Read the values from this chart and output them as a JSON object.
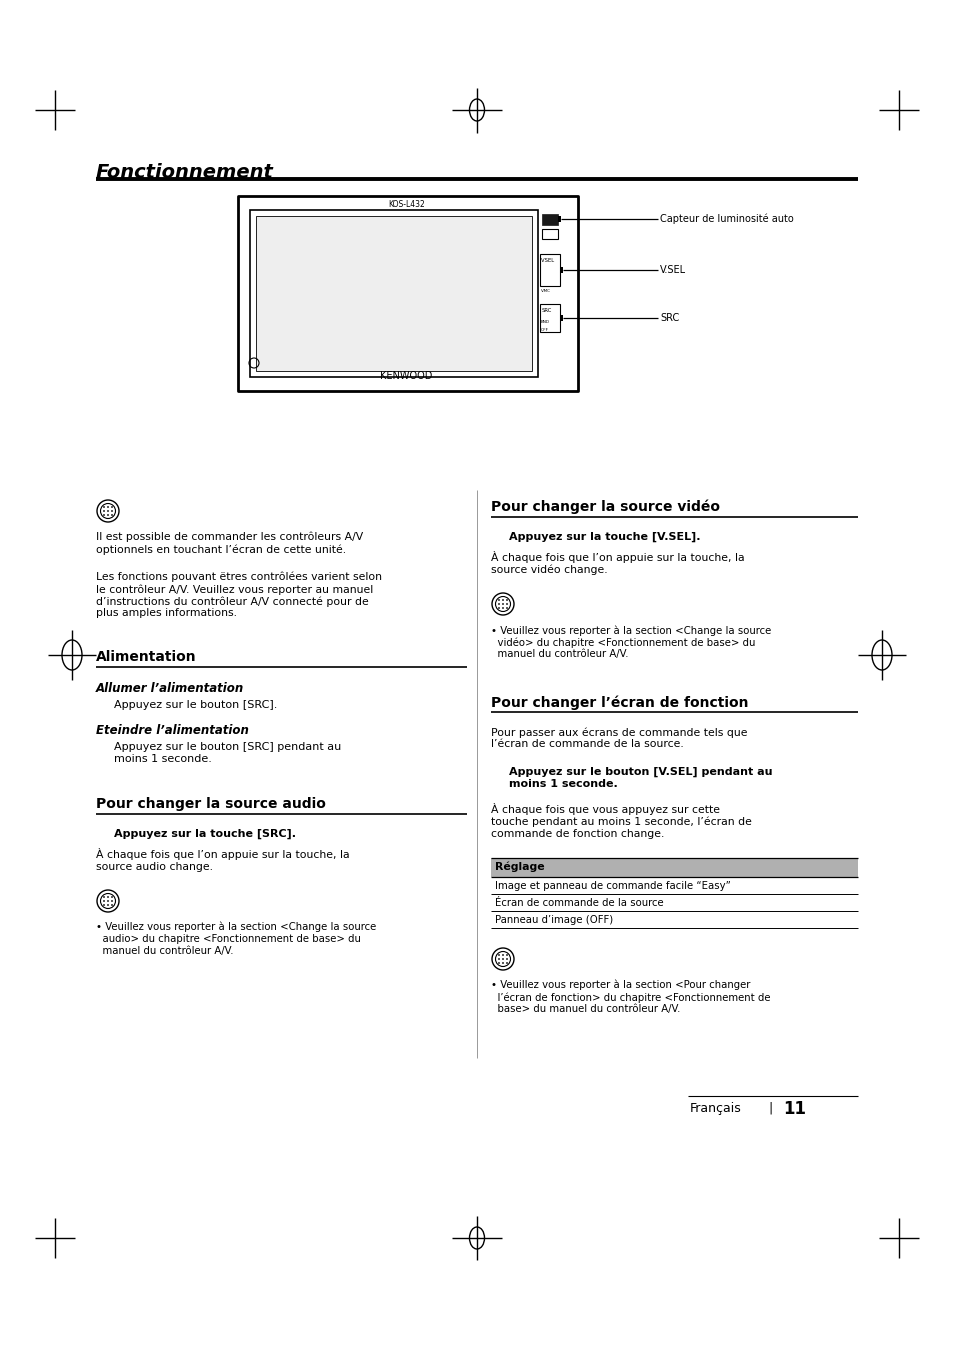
{
  "bg_color": "#ffffff",
  "title": "Fonctionnement",
  "device_model": "KOS-L432",
  "kenwood": "KENWOOD",
  "cap_lum": "Capteur de luminosité auto",
  "cap_vsel": "V.SEL",
  "cap_src": "SRC",
  "left_note1": "Il est possible de commander les contrôleurs A/V\noptionnels en touchant l’écran de cette unité.",
  "left_note2": "Les fonctions pouvant ëtres contrôlées varient selon\nle contrôleur A/V. Veuillez vous reporter au manuel\nd’instructions du contrôleur A/V connecté pour de\nplus amples informations.",
  "ali_title": "Alimentation",
  "ali_sub1_title": "Allumer l’alimentation",
  "ali_sub1_body": "Appuyez sur le bouton [SRC].",
  "ali_sub2_title": "Eteindre l’alimentation",
  "ali_sub2_body": "Appuyez sur le bouton [SRC] pendant au\nmoins 1 seconde.",
  "audio_title": "Pour changer la source audio",
  "audio_bold": "Appuyez sur la touche [SRC].",
  "audio_body": "À chaque fois que l’on appuie sur la touche, la\nsource audio change.",
  "audio_note": "• Veuillez vous reporter à la section <Change la source\n  audio> du chapitre <Fonctionnement de base> du\n  manuel du contrôleur A/V.",
  "video_title": "Pour changer la source vidéo",
  "video_bold": "Appuyez sur la touche [V.SEL].",
  "video_body": "À chaque fois que l’on appuie sur la touche, la\nsource vidéo change.",
  "video_note": "• Veuillez vous reporter à la section <Change la source\n  vidéo> du chapitre <Fonctionnement de base> du\n  manuel du contrôleur A/V.",
  "ecran_title": "Pour changer l’écran de fonction",
  "ecran_intro": "Pour passer aux écrans de commande tels que\nl’écran de commande de la source.",
  "ecran_bold": "Appuyez sur le bouton [V.SEL] pendant au\nmoins 1 seconde.",
  "ecran_body": "À chaque fois que vous appuyez sur cette\ntouche pendant au moins 1 seconde, l’écran de\ncommande de fonction change.",
  "table_header": "Réglage",
  "table_rows": [
    "Image et panneau de commande facile “Easy”",
    "Écran de commande de la source",
    "Panneau d’image (OFF)"
  ],
  "ecran_note": "• Veuillez vous reporter à la section <Pour changer\n  l’écran de fonction> du chapitre <Fonctionnement de\n  base> du manuel du contrôleur A/V.",
  "footer_lang": "Français",
  "footer_sep": "|",
  "footer_page": "11"
}
